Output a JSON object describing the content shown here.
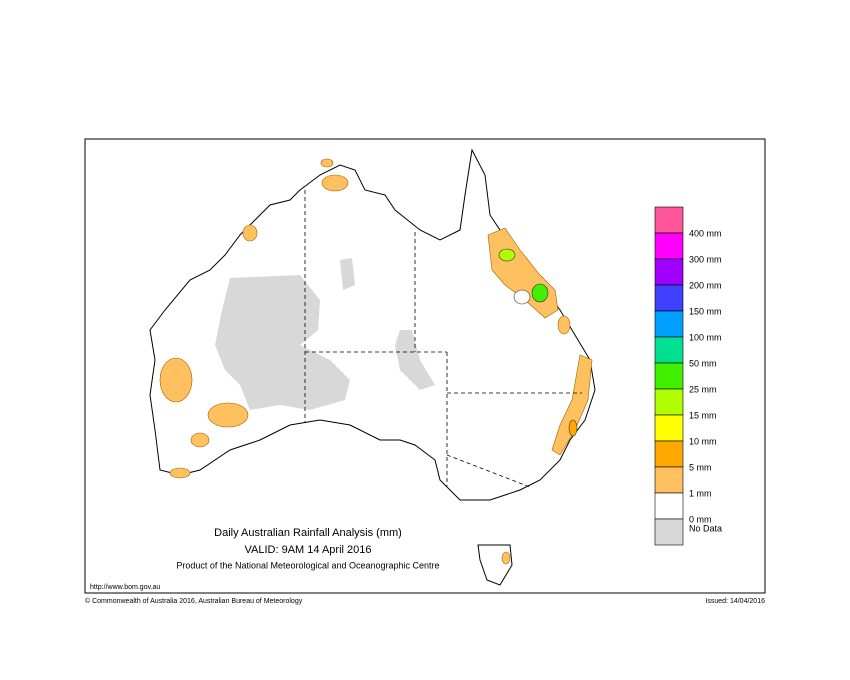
{
  "map": {
    "title": "Daily Australian Rainfall Analysis (mm)",
    "valid": "VALID: 9AM 14 April 2016",
    "product": "Product of the National Meteorological and Oceanographic Centre",
    "url": "http://www.bom.gov.au",
    "copyright": "© Commonwealth of Australia 2016, Australian Bureau of Meteorology",
    "issued": "Issued: 14/04/2016",
    "legend": {
      "colors": [
        "#ff5599",
        "#ff00ff",
        "#a000ff",
        "#4040ff",
        "#00a0ff",
        "#00e090",
        "#40f000",
        "#b0ff00",
        "#ffff00",
        "#ffa800",
        "#ffc060",
        "#ffffff",
        "#d8d8d8"
      ],
      "labels": [
        "400 mm",
        "300 mm",
        "200 mm",
        "150 mm",
        "100 mm",
        "50 mm",
        "25 mm",
        "15 mm",
        "10 mm",
        "5 mm",
        "1 mm",
        "0 mm",
        "No Data"
      ]
    }
  }
}
